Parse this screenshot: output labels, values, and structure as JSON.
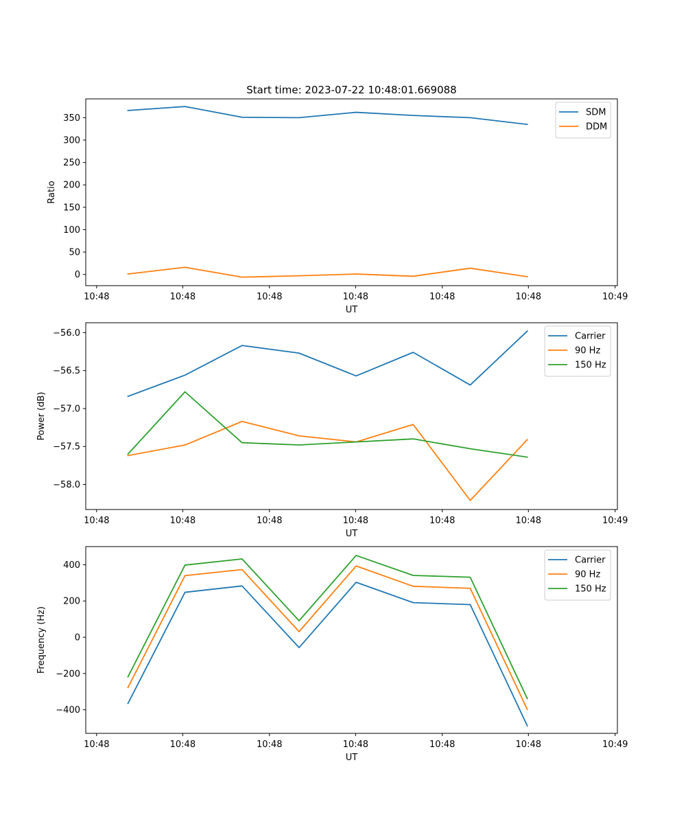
{
  "colors": {
    "blue": "#1f77b4",
    "orange": "#ff7f0e",
    "green": "#2ca02c"
  },
  "chart_data": [
    {
      "type": "line",
      "title": "Start time: 2023-07-22 10:48:01.669088",
      "xlabel": "UT",
      "ylabel": "Ratio",
      "xlim": [
        -0.74,
        8.58
      ],
      "ylim": [
        -25,
        392
      ],
      "x_tick_positions": [
        -0.55,
        0.96,
        2.48,
        3.99,
        5.51,
        7.02,
        8.54
      ],
      "x_tick_labels": [
        "10:48",
        "10:48",
        "10:48",
        "10:48",
        "10:48",
        "10:48",
        "10:49"
      ],
      "y_ticks": [
        0,
        50,
        100,
        150,
        200,
        250,
        300,
        350
      ],
      "y_tick_labels": [
        "0",
        "50",
        "100",
        "150",
        "200",
        "250",
        "300",
        "350"
      ],
      "x": [
        0,
        1,
        2,
        3,
        4,
        5,
        6,
        7
      ],
      "legend_position": "top-right",
      "series": [
        {
          "name": "SDM",
          "color": "#1f77b4",
          "values": [
            366,
            375,
            351,
            350,
            362,
            355,
            350,
            335
          ]
        },
        {
          "name": "DDM",
          "color": "#ff7f0e",
          "values": [
            1,
            16,
            -6,
            -3,
            1,
            -4,
            14,
            -5
          ]
        }
      ]
    },
    {
      "type": "line",
      "title": "",
      "xlabel": "UT",
      "ylabel": "Power (dB)",
      "xlim": [
        -0.74,
        8.58
      ],
      "ylim": [
        -58.33,
        -55.87
      ],
      "x_tick_positions": [
        -0.55,
        0.96,
        2.48,
        3.99,
        5.51,
        7.02,
        8.54
      ],
      "x_tick_labels": [
        "10:48",
        "10:48",
        "10:48",
        "10:48",
        "10:48",
        "10:48",
        "10:49"
      ],
      "y_ticks": [
        -58.0,
        -57.5,
        -57.0,
        -56.5,
        -56.0
      ],
      "y_tick_labels": [
        "−58.0",
        "−57.5",
        "−57.0",
        "−56.5",
        "−56.0"
      ],
      "x": [
        0,
        1,
        2,
        3,
        4,
        5,
        6,
        7
      ],
      "legend_position": "top-right",
      "series": [
        {
          "name": "Carrier",
          "color": "#1f77b4",
          "values": [
            -56.84,
            -56.56,
            -56.17,
            -56.27,
            -56.57,
            -56.26,
            -56.69,
            -55.98
          ]
        },
        {
          "name": "90 Hz",
          "color": "#ff7f0e",
          "values": [
            -57.62,
            -57.48,
            -57.17,
            -57.36,
            -57.44,
            -57.21,
            -58.21,
            -57.41
          ]
        },
        {
          "name": "150 Hz",
          "color": "#2ca02c",
          "values": [
            -57.6,
            -56.78,
            -57.45,
            -57.48,
            -57.44,
            -57.4,
            -57.53,
            -57.64
          ]
        }
      ]
    },
    {
      "type": "line",
      "title": "",
      "xlabel": "UT",
      "ylabel": "Frequency (Hz)",
      "xlim": [
        -0.74,
        8.58
      ],
      "ylim": [
        -530,
        500
      ],
      "x_tick_positions": [
        -0.55,
        0.96,
        2.48,
        3.99,
        5.51,
        7.02,
        8.54
      ],
      "x_tick_labels": [
        "10:48",
        "10:48",
        "10:48",
        "10:48",
        "10:48",
        "10:48",
        "10:49"
      ],
      "y_ticks": [
        -400,
        -200,
        0,
        200,
        400
      ],
      "y_tick_labels": [
        "−400",
        "−200",
        "0",
        "200",
        "400"
      ],
      "x": [
        0,
        1,
        2,
        3,
        4,
        5,
        6,
        7
      ],
      "legend_position": "top-right",
      "series": [
        {
          "name": "Carrier",
          "color": "#1f77b4",
          "values": [
            -365,
            248,
            283,
            -57,
            303,
            191,
            180,
            -488
          ]
        },
        {
          "name": "90 Hz",
          "color": "#ff7f0e",
          "values": [
            -277,
            340,
            373,
            31,
            393,
            281,
            270,
            -398
          ]
        },
        {
          "name": "150 Hz",
          "color": "#2ca02c",
          "values": [
            -218,
            398,
            432,
            91,
            451,
            341,
            331,
            -338
          ]
        }
      ]
    }
  ]
}
